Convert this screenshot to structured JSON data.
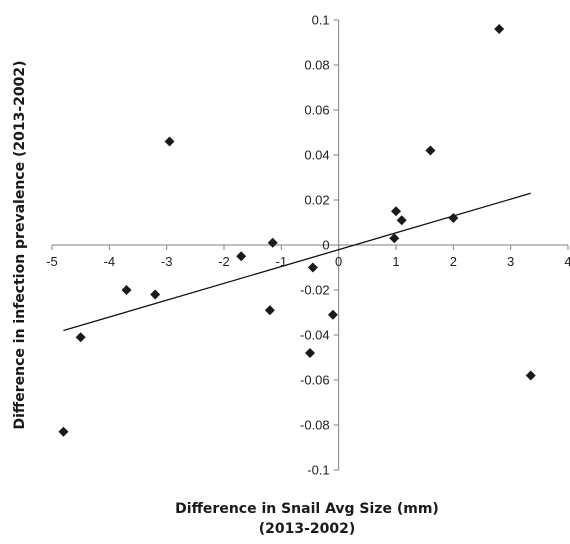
{
  "chart_data": {
    "type": "scatter",
    "title": "",
    "xlabel_lines": [
      "Difference in Snail Avg Size (mm)",
      "(2013-2002)"
    ],
    "ylabel": "Difference in infection prevalence (2013-2002)",
    "xlim": [
      -5,
      4
    ],
    "ylim": [
      -0.1,
      0.1
    ],
    "x_ticks": [
      "-5",
      "-4",
      "-3",
      "-2",
      "-1",
      "0",
      "1",
      "2",
      "3",
      "4"
    ],
    "y_ticks": [
      "0.1",
      "0.08",
      "0.06",
      "0.04",
      "0.02",
      "0",
      "-0.02",
      "-0.04",
      "-0.06",
      "-0.08",
      "-0.1"
    ],
    "marker": "diamond",
    "marker_color": "#1a1a1a",
    "grid": false,
    "legend": "none",
    "points": [
      {
        "x": -4.8,
        "y": -0.083
      },
      {
        "x": -4.5,
        "y": -0.041
      },
      {
        "x": -3.7,
        "y": -0.02
      },
      {
        "x": -3.2,
        "y": -0.022
      },
      {
        "x": -2.95,
        "y": 0.046
      },
      {
        "x": -1.7,
        "y": -0.005
      },
      {
        "x": -1.15,
        "y": 0.001
      },
      {
        "x": -1.2,
        "y": -0.029
      },
      {
        "x": -0.45,
        "y": -0.01
      },
      {
        "x": -0.5,
        "y": -0.048
      },
      {
        "x": -0.1,
        "y": -0.031
      },
      {
        "x": 0.97,
        "y": 0.003
      },
      {
        "x": 1.0,
        "y": 0.015
      },
      {
        "x": 1.1,
        "y": 0.011
      },
      {
        "x": 1.6,
        "y": 0.042
      },
      {
        "x": 2.0,
        "y": 0.012
      },
      {
        "x": 2.8,
        "y": 0.096
      },
      {
        "x": 3.35,
        "y": -0.058
      }
    ],
    "trendline": {
      "x": [
        -4.8,
        3.35
      ],
      "y": [
        -0.038,
        0.023
      ]
    }
  }
}
